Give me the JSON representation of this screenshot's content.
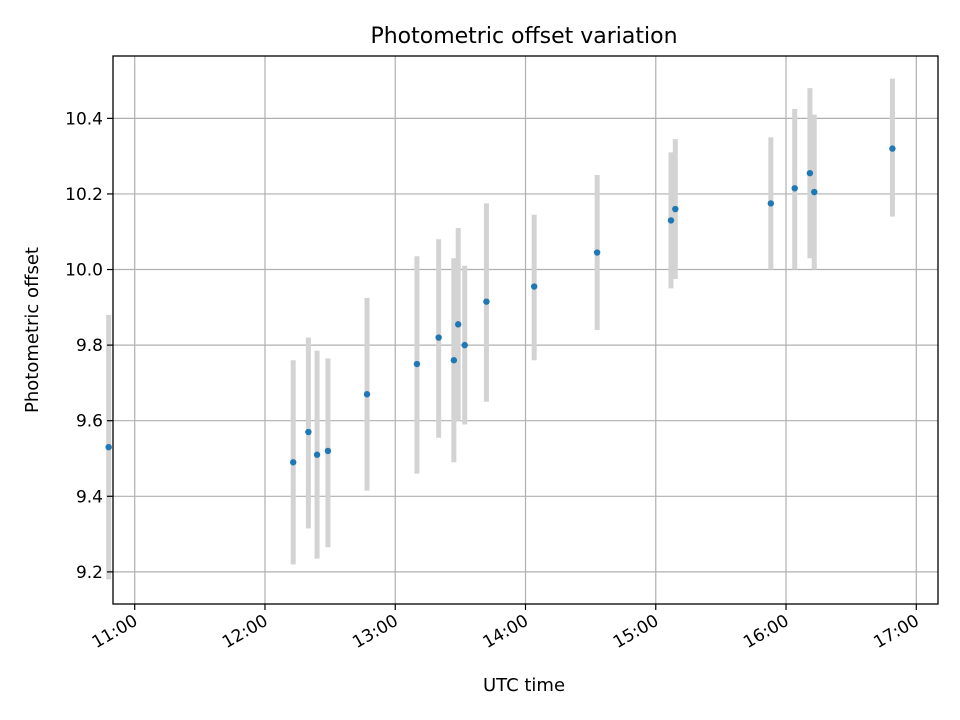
{
  "chart_data": {
    "type": "scatter",
    "title": "Photometric offset variation",
    "xlabel": "UTC time",
    "ylabel": "Photometric offset",
    "xlim": [
      "10:50",
      "17:10"
    ],
    "ylim": [
      9.115,
      10.565
    ],
    "grid": true,
    "x_ticks": [
      "11:00",
      "12:00",
      "13:00",
      "14:00",
      "15:00",
      "16:00",
      "17:00"
    ],
    "y_ticks": [
      "9.2",
      "9.4",
      "9.6",
      "9.8",
      "10.0",
      "10.2",
      "10.4"
    ],
    "colors": {
      "marker": "#1f77b4",
      "errorbar": "#d3d3d3",
      "grid": "#b0b0b0"
    },
    "points": [
      {
        "x": "10:48",
        "y": 9.53,
        "ylow": 9.18,
        "yhigh": 9.88
      },
      {
        "x": "12:13",
        "y": 9.49,
        "ylow": 9.22,
        "yhigh": 9.76
      },
      {
        "x": "12:20",
        "y": 9.57,
        "ylow": 9.315,
        "yhigh": 9.82
      },
      {
        "x": "12:24",
        "y": 9.51,
        "ylow": 9.235,
        "yhigh": 9.785
      },
      {
        "x": "12:29",
        "y": 9.52,
        "ylow": 9.265,
        "yhigh": 9.765
      },
      {
        "x": "12:47",
        "y": 9.67,
        "ylow": 9.415,
        "yhigh": 9.925
      },
      {
        "x": "13:10",
        "y": 9.75,
        "ylow": 9.46,
        "yhigh": 10.035
      },
      {
        "x": "13:20",
        "y": 9.82,
        "ylow": 9.555,
        "yhigh": 10.08
      },
      {
        "x": "13:27",
        "y": 9.76,
        "ylow": 9.49,
        "yhigh": 10.03
      },
      {
        "x": "13:29",
        "y": 9.855,
        "ylow": 9.6,
        "yhigh": 10.11
      },
      {
        "x": "13:32",
        "y": 9.8,
        "ylow": 9.59,
        "yhigh": 10.01
      },
      {
        "x": "13:42",
        "y": 9.915,
        "ylow": 9.65,
        "yhigh": 10.175
      },
      {
        "x": "14:04",
        "y": 9.955,
        "ylow": 9.76,
        "yhigh": 10.145
      },
      {
        "x": "14:33",
        "y": 10.045,
        "ylow": 9.84,
        "yhigh": 10.25
      },
      {
        "x": "15:07",
        "y": 10.13,
        "ylow": 9.95,
        "yhigh": 10.31
      },
      {
        "x": "15:09",
        "y": 10.16,
        "ylow": 9.975,
        "yhigh": 10.345
      },
      {
        "x": "15:53",
        "y": 10.175,
        "ylow": 10.0,
        "yhigh": 10.35
      },
      {
        "x": "16:04",
        "y": 10.215,
        "ylow": 10.0,
        "yhigh": 10.425
      },
      {
        "x": "16:11",
        "y": 10.255,
        "ylow": 10.03,
        "yhigh": 10.48
      },
      {
        "x": "16:13",
        "y": 10.205,
        "ylow": 10.0,
        "yhigh": 10.41
      },
      {
        "x": "16:49",
        "y": 10.32,
        "ylow": 10.14,
        "yhigh": 10.505
      }
    ]
  }
}
